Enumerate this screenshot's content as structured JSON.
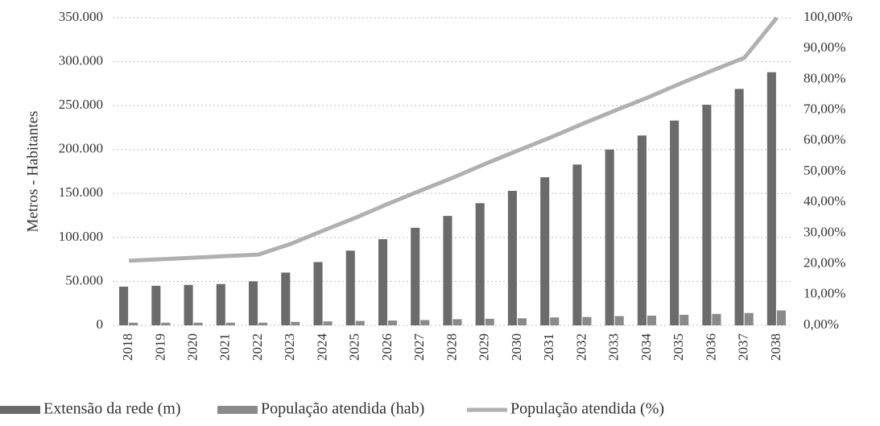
{
  "chart_data": {
    "type": "bar",
    "y_label": "Metros - Habitantes",
    "categories": [
      "2018",
      "2019",
      "2020",
      "2021",
      "2022",
      "2023",
      "2024",
      "2025",
      "2026",
      "2027",
      "2028",
      "2029",
      "2030",
      "2031",
      "2032",
      "2033",
      "2034",
      "2035",
      "2036",
      "2037",
      "2038"
    ],
    "series": [
      {
        "name": "Extensão da rede (m)",
        "color": "#6b6b6b",
        "type": "bar",
        "values": [
          44000,
          45000,
          46000,
          47000,
          50000,
          60000,
          72000,
          85000,
          98000,
          111000,
          124500,
          139000,
          153000,
          168500,
          183000,
          200000,
          216000,
          233000,
          251000,
          269000,
          288000
        ]
      },
      {
        "name": "População atendida (hab)",
        "color": "#8a8a8a",
        "type": "bar",
        "values": [
          3000,
          3000,
          3000,
          3000,
          3000,
          4000,
          4500,
          5000,
          5500,
          6000,
          7000,
          7500,
          8000,
          9000,
          9500,
          10500,
          11000,
          12000,
          13000,
          14000,
          17000
        ]
      },
      {
        "name": "População atendida (%)",
        "color": "#b0b0b0",
        "type": "line",
        "axis": "y2",
        "values": [
          21,
          21.5,
          22,
          22.5,
          23,
          26.5,
          30.8,
          35,
          39.5,
          43.8,
          48,
          52.5,
          56.8,
          61,
          65.5,
          69.8,
          74,
          78.5,
          82.8,
          87,
          100
        ]
      }
    ],
    "ylim": [
      0,
      350000
    ],
    "yticks": [
      0,
      {
        "value": 50000,
        "label": "50.000"
      },
      {
        "value": 100000,
        "label": "100.000"
      },
      {
        "value": 150000,
        "label": "150.000"
      },
      {
        "value": 200000,
        "label": "200.000"
      },
      {
        "value": 250000,
        "label": "250.000"
      },
      {
        "value": 300000,
        "label": "300.000"
      },
      {
        "value": 350000,
        "label": "350.000"
      }
    ],
    "y2lim": [
      0,
      100
    ],
    "y2ticks": [
      {
        "value": 0,
        "label": "0,00%"
      },
      {
        "value": 10,
        "label": "10,00%"
      },
      {
        "value": 20,
        "label": "20,00%"
      },
      {
        "value": 30,
        "label": "30,00%"
      },
      {
        "value": 40,
        "label": "40,00%"
      },
      {
        "value": 50,
        "label": "50,00%"
      },
      {
        "value": 60,
        "label": "60,00%"
      },
      {
        "value": 70,
        "label": "70,00%"
      },
      {
        "value": 80,
        "label": "80,00%"
      },
      {
        "value": 90,
        "label": "90,00%"
      },
      {
        "value": 100,
        "label": "100,00%"
      }
    ],
    "grid": true,
    "legend": "bottom"
  }
}
